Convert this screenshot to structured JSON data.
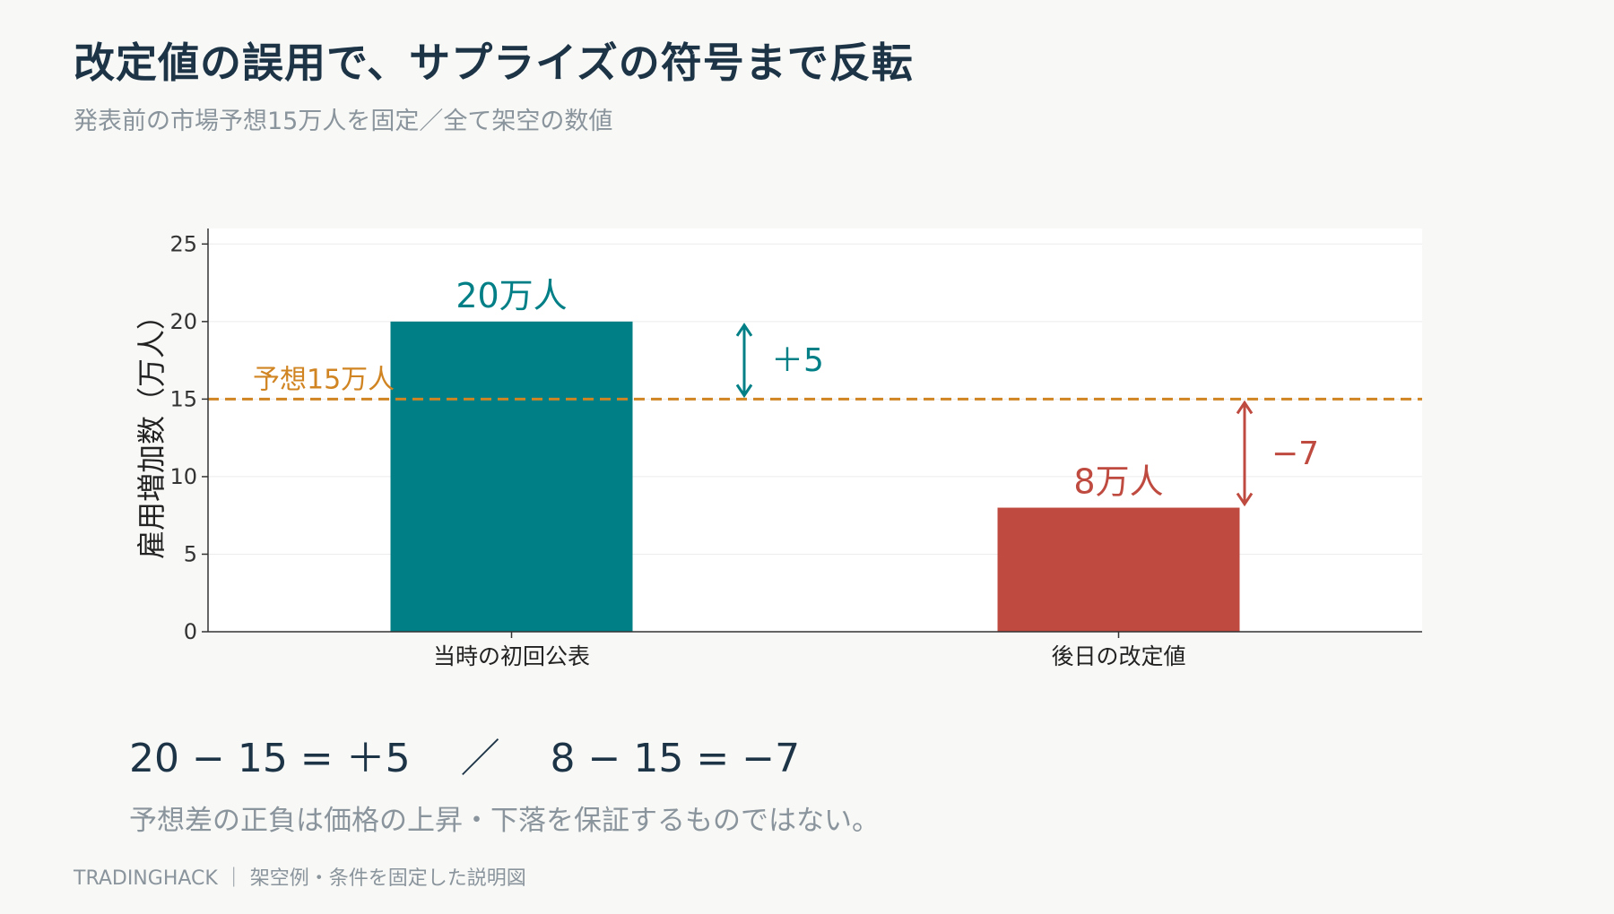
{
  "header": {
    "title": "改定値の誤用で、サプライズの符号まで反転",
    "subtitle": "発表前の市場予想15万人を固定／全て架空の数値"
  },
  "colors": {
    "bar_initial": "#007f86",
    "bar_revised": "#bf4b40",
    "forecast_line": "#d08422",
    "text_dark": "#1d3447",
    "text_muted": "#8a949c"
  },
  "chart_data": {
    "type": "bar",
    "categories": [
      "当時の初回公表",
      "後日の改定値"
    ],
    "values": [
      20,
      8
    ],
    "bar_labels": [
      "20万人",
      "8万人"
    ],
    "ylabel": "雇用増加数（万人）",
    "ylim": [
      0,
      26
    ],
    "yticks": [
      0,
      5,
      10,
      15,
      20,
      25
    ],
    "grid": true,
    "reference_line": {
      "value": 15,
      "label": "予想15万人"
    },
    "annotations": [
      {
        "from": 15,
        "to": 20,
        "label": "＋5"
      },
      {
        "from": 15,
        "to": 8,
        "label": "−7"
      }
    ]
  },
  "equation": {
    "text": "20 − 15 = ＋5    ／    8 − 15 = −7"
  },
  "note": {
    "text": "予想差の正負は価格の上昇・下落を保証するものではない。"
  },
  "footer": {
    "text": "TRADINGHACK ｜ 架空例・条件を固定した説明図"
  }
}
